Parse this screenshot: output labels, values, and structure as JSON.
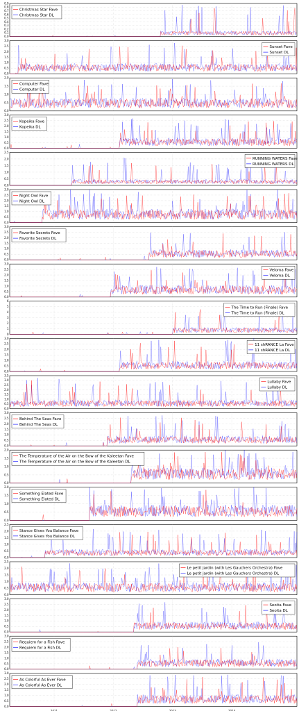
{
  "colors": {
    "fave": "#ff0000",
    "dl": "#0000ff",
    "grid": "#cccccc",
    "frame": "#000000"
  },
  "chart_data": {
    "type": "line",
    "x_tick_labels": [
      "2011",
      "2012",
      "2013",
      "2014"
    ],
    "x_tick_positions": [
      2011.0,
      2012.0,
      2013.0,
      2014.0
    ],
    "xlim": [
      2010.25,
      2015.1
    ],
    "grid": true,
    "panels": [
      {
        "fave": "Christmas Star Fave",
        "dl": "Christmas Star DL",
        "ylim": [
          0,
          0.9
        ],
        "yticks": [
          "0.0",
          "0.1",
          "0.2",
          "0.3",
          "0.4",
          "0.5",
          "0.6",
          "0.7",
          "0.8",
          "0.9"
        ],
        "legend": "top-left",
        "start": 2012.8,
        "level": 0.1,
        "peak": 0.8
      },
      {
        "fave": "Sunset Fave",
        "dl": "Sunset DL",
        "ylim": [
          0,
          3.0
        ],
        "yticks": [
          "0.0",
          "0.5",
          "1.0",
          "1.5",
          "2.0",
          "2.5",
          "3.0"
        ],
        "legend": "top-right",
        "start": 2010.4,
        "level": 0.6,
        "peak": 2.6
      },
      {
        "fave": "Computer Fave",
        "dl": "Computer DL",
        "ylim": [
          0,
          2.0
        ],
        "yticks": [
          "0.0",
          "0.5",
          "1.0",
          "1.5",
          "2.0"
        ],
        "legend": "top-left",
        "start": 2010.25,
        "level": 0.5,
        "peak": 1.8
      },
      {
        "fave": "Kopeika Fave",
        "dl": "Kopeika DL",
        "ylim": [
          0,
          3.0
        ],
        "yticks": [
          "0.0",
          "0.5",
          "1.0",
          "1.5",
          "2.0",
          "2.5",
          "3.0"
        ],
        "legend": "top-left",
        "start": 2012.1,
        "level": 0.6,
        "peak": 2.5
      },
      {
        "fave": "RUNNING WATERS Fave",
        "dl": "RUNNING WATERS DL",
        "ylim": [
          0,
          2.5
        ],
        "yticks": [
          "0.0",
          "0.5",
          "1.0",
          "1.5",
          "2.0",
          "2.5"
        ],
        "legend": "top-right",
        "start": 2011.3,
        "level": 0.3,
        "peak": 2.0
      },
      {
        "fave": "Night Owl Fave",
        "dl": "Night Owl DL",
        "ylim": [
          0,
          3.0
        ],
        "yticks": [
          "0.0",
          "0.5",
          "1.0",
          "1.5",
          "2.0",
          "2.5",
          "3.0"
        ],
        "legend": "top-left",
        "start": 2010.8,
        "level": 0.8,
        "peak": 2.8
      },
      {
        "fave": "Favorite Secrets Fave",
        "dl": "Favorite Secrets DL",
        "ylim": [
          0,
          3.0
        ],
        "yticks": [
          "0.0",
          "0.5",
          "1.0",
          "1.5",
          "2.0",
          "2.5",
          "3.0"
        ],
        "legend": "top-left",
        "start": 2012.6,
        "level": 0.6,
        "peak": 2.4
      },
      {
        "fave": "Veloma Fave",
        "dl": "Veloma DL",
        "ylim": [
          0,
          3.0
        ],
        "yticks": [
          "0.0",
          "0.5",
          "1.0",
          "1.5",
          "2.0",
          "2.5",
          "3.0"
        ],
        "legend": "top-right",
        "start": 2011.95,
        "level": 0.7,
        "peak": 2.6
      },
      {
        "fave": "The Time to Run (Finale) Fave",
        "dl": "The Time to Run (Finale) DL",
        "ylim": [
          0,
          6
        ],
        "yticks": [
          "0",
          "1",
          "2",
          "3",
          "4",
          "5",
          "6"
        ],
        "legend": "top-right",
        "start": 2013.0,
        "level": 0.8,
        "peak": 5.0
      },
      {
        "fave": "11 shRANCE La Fave",
        "dl": "11 shRANCE La DL",
        "ylim": [
          0,
          3.0
        ],
        "yticks": [
          "0.0",
          "0.5",
          "1.0",
          "1.5",
          "2.0",
          "2.5",
          "3.0"
        ],
        "legend": "top-right",
        "start": 2012.1,
        "level": 0.6,
        "peak": 2.8
      },
      {
        "fave": "Lullaby Fave",
        "dl": "Lullaby DL",
        "ylim": [
          0,
          3.5
        ],
        "yticks": [
          "0.0",
          "0.5",
          "1.0",
          "1.5",
          "2.0",
          "2.5",
          "3.0",
          "3.5"
        ],
        "legend": "top-right",
        "start": 2010.25,
        "level": 0.6,
        "peak": 3.1
      },
      {
        "fave": "Behind The Seas Fave",
        "dl": "Behind The Seas DL",
        "ylim": [
          0,
          3.0
        ],
        "yticks": [
          "0.0",
          "0.5",
          "1.0",
          "1.5",
          "2.0",
          "2.5",
          "3.0"
        ],
        "legend": "top-left",
        "start": 2011.9,
        "level": 0.6,
        "peak": 2.6
      },
      {
        "fave": "The Temperature of the Air on the Bow of the Kaleetan Fave",
        "dl": "The Temperature of the Air on the Bow of the Kaleetan DL",
        "ylim": [
          0,
          2.0
        ],
        "yticks": [
          "0.0",
          "0.5",
          "1.0",
          "1.5",
          "2.0"
        ],
        "legend": "top-left",
        "start": 2012.3,
        "level": 0.6,
        "peak": 1.9
      },
      {
        "fave": "Something Elated Fave",
        "dl": "Something Elated DL",
        "ylim": [
          0,
          2.0
        ],
        "yticks": [
          "0.0",
          "0.5",
          "1.0",
          "1.5",
          "2.0"
        ],
        "legend": "top-left",
        "start": 2011.6,
        "level": 0.6,
        "peak": 1.9
      },
      {
        "fave": "Stance Gives You Balance Fave",
        "dl": "Stance Gives You Balance DL",
        "ylim": [
          0,
          2.5
        ],
        "yticks": [
          "0.0",
          "0.5",
          "1.0",
          "1.5",
          "2.0",
          "2.5"
        ],
        "legend": "top-left",
        "start": 2010.85,
        "level": 0.4,
        "peak": 2.0
      },
      {
        "fave": "Le petit jardin (with Les Gauchers Orchestra) Fave",
        "dl": "Le petit jardin (with Les Gauchers Orchestra) DL",
        "ylim": [
          0,
          2.5
        ],
        "yticks": [
          "0.0",
          "0.5",
          "1.0",
          "1.5",
          "2.0",
          "2.5"
        ],
        "legend": "top-right",
        "start": 2010.25,
        "level": 0.6,
        "peak": 2.2
      },
      {
        "fave": "Seoita Fave",
        "dl": "Seoita DL",
        "ylim": [
          0,
          3.0
        ],
        "yticks": [
          "0.0",
          "0.5",
          "1.0",
          "1.5",
          "2.0",
          "2.5",
          "3.0"
        ],
        "legend": "top-right",
        "start": 2012.35,
        "level": 0.6,
        "peak": 2.5
      },
      {
        "fave": "Requiem for a Fish Fave",
        "dl": "Requiem for a Fish DL",
        "ylim": [
          0,
          3.0
        ],
        "yticks": [
          "0.0",
          "0.5",
          "1.0",
          "1.5",
          "2.0",
          "2.5",
          "3.0"
        ],
        "legend": "top-left",
        "start": 2012.4,
        "level": 0.6,
        "peak": 2.4
      },
      {
        "fave": "As Colorful As Ever Fave",
        "dl": "As Colorful As Ever DL",
        "ylim": [
          0,
          3.0
        ],
        "yticks": [
          "0.0",
          "0.5",
          "1.0",
          "1.5",
          "2.0",
          "2.5",
          "3.0"
        ],
        "legend": "top-left",
        "start": 2012.4,
        "level": 0.7,
        "peak": 2.7
      }
    ]
  }
}
